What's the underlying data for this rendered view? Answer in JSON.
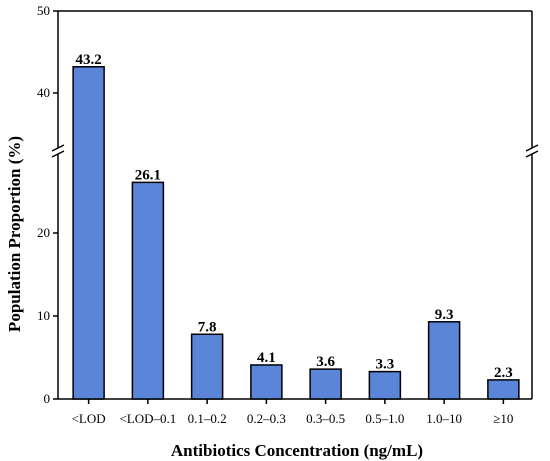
{
  "chart_data": {
    "type": "bar",
    "title": "",
    "xlabel": "Antibiotics Concentration (ng/mL)",
    "ylabel": "Population Proportion (%)",
    "categories": [
      "<LOD",
      "<LOD–0.1",
      "0.1–0.2",
      "0.2–0.3",
      "0.3–0.5",
      "0.5–1.0",
      "1.0–10",
      "≥10"
    ],
    "values": [
      43.2,
      26.1,
      7.8,
      4.1,
      3.6,
      3.3,
      9.3,
      2.3
    ],
    "data_labels": [
      "43.2",
      "26.1",
      "7.8",
      "4.1",
      "3.6",
      "3.3",
      "9.3",
      "2.3"
    ],
    "ylim": [
      0,
      50
    ],
    "y_axis_break": [
      30,
      38
    ],
    "y_ticks_lower": [
      "0",
      "10",
      "20"
    ],
    "y_ticks_upper": [
      "40",
      "50"
    ],
    "grid": false,
    "colors": {
      "bar": "#5b85d8",
      "edge": "#000000"
    }
  }
}
